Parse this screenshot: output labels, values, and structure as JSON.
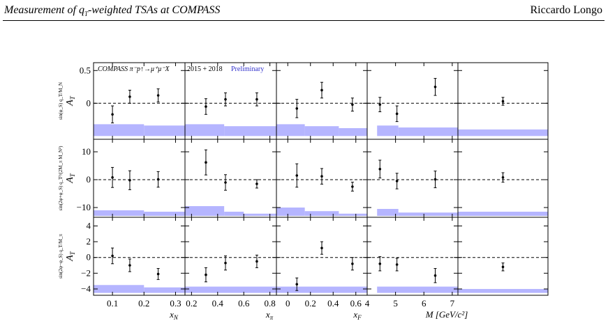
{
  "header": {
    "left_title": "Measurement of q",
    "left_title_sub": "T",
    "left_title_rest": "-weighted TSAs at COMPASS",
    "author": "Riccardo Longo"
  },
  "figure": {
    "annotation_main": "COMPASS π⁻p↑→μ⁺μ⁻X",
    "annotation_years": "2015 + 2018",
    "annotation_prelim": "Preliminary",
    "annotation_prelim_color": "#3333cc",
    "band_color": "#b5b5ff"
  },
  "chart_data": {
    "type": "scatter",
    "layout": "3 rows × 5 columns of panels",
    "rows": [
      {
        "ylabel_main": "A",
        "ylabel_sub": "T",
        "ylabel_sup": "sin(φ_S) q_T/M_N",
        "ylim": [
          -0.55,
          0.62
        ],
        "yticks": [
          0,
          0.5
        ],
        "ytick_labels": [
          "0",
          "0.5"
        ]
      },
      {
        "ylabel_main": "A",
        "ylabel_sub": "T",
        "ylabel_sup": "sin(2φ+φ_S) q_T³/(2M_π M_N²)",
        "ylim": [
          -13.5,
          14.5
        ],
        "yticks": [
          -10,
          0,
          10
        ],
        "ytick_labels": [
          "−10",
          "0",
          "10"
        ]
      },
      {
        "ylabel_main": "A",
        "ylabel_sub": "T",
        "ylabel_sup": "sin(2φ−φ_S) q_T/M_π",
        "ylim": [
          -4.8,
          5.1
        ],
        "yticks": [
          -4,
          -2,
          0,
          2,
          4
        ],
        "ytick_labels": [
          "−4",
          "−2",
          "0",
          "2",
          "4"
        ]
      }
    ],
    "columns": [
      {
        "xlabel": "x",
        "xlabel_sub": "N",
        "xlim": [
          0.04,
          0.33
        ],
        "xticks": [
          0.1,
          0.2,
          0.3
        ],
        "xtick_labels": [
          "0.1",
          "0.2",
          "0.3"
        ]
      },
      {
        "xlabel": "x",
        "xlabel_sub": "π",
        "xlim": [
          0.15,
          0.85
        ],
        "xticks": [
          0.2,
          0.4,
          0.6,
          0.8
        ],
        "xtick_labels": [
          "0.2",
          "0.4",
          "0.6",
          "0.8"
        ]
      },
      {
        "xlabel": "x",
        "xlabel_sub": "F",
        "xlim": [
          -0.1,
          0.7
        ],
        "xticks": [
          0,
          0.2,
          0.4,
          0.6
        ],
        "xtick_labels": [
          "0",
          "0.2",
          "0.4",
          "0.6"
        ]
      },
      {
        "xlabel": "M  [GeV/c²]",
        "xlabel_sub": "",
        "xlim": [
          4.0,
          7.2
        ],
        "xticks": [
          4,
          5,
          6,
          7
        ],
        "xtick_labels": [
          "4",
          "5",
          "6",
          "7"
        ]
      },
      {
        "xlabel": "",
        "xlabel_sub": "",
        "xlim": [
          0,
          1
        ],
        "xticks": [],
        "xtick_labels": []
      }
    ],
    "panels": [
      [
        {
          "points": [
            [
              0.1,
              -0.17,
              0.13
            ],
            [
              0.155,
              0.1,
              0.1
            ],
            [
              0.245,
              0.12,
              0.1
            ]
          ],
          "band_bottom": -0.5,
          "band": [
            [
              0.04,
              0.2,
              -0.32
            ],
            [
              0.2,
              0.33,
              -0.34
            ]
          ]
        },
        {
          "points": [
            [
              0.31,
              -0.05,
              0.12
            ],
            [
              0.46,
              0.06,
              0.1
            ],
            [
              0.7,
              0.06,
              0.1
            ]
          ],
          "band_bottom": -0.5,
          "band": [
            [
              0.15,
              0.45,
              -0.32
            ],
            [
              0.45,
              0.85,
              -0.35
            ]
          ]
        },
        {
          "points": [
            [
              0.08,
              -0.08,
              0.14
            ],
            [
              0.3,
              0.2,
              0.12
            ],
            [
              0.57,
              -0.02,
              0.1
            ]
          ],
          "band_bottom": -0.5,
          "band": [
            [
              -0.1,
              0.15,
              -0.32
            ],
            [
              0.15,
              0.45,
              -0.35
            ],
            [
              0.45,
              0.7,
              -0.38
            ]
          ]
        },
        {
          "points": [
            [
              4.45,
              -0.02,
              0.11
            ],
            [
              5.05,
              -0.16,
              0.12
            ],
            [
              6.4,
              0.25,
              0.13
            ]
          ],
          "band_bottom": -0.5,
          "band": [
            [
              4.35,
              5.1,
              -0.34
            ],
            [
              5.1,
              7.2,
              -0.37
            ]
          ]
        },
        {
          "points": [
            [
              0.5,
              0.03,
              0.06
            ]
          ],
          "band_bottom": -0.5,
          "band": [
            [
              0,
              1,
              -0.4
            ]
          ]
        }
      ],
      [
        {
          "points": [
            [
              0.1,
              0.8,
              3.6
            ],
            [
              0.155,
              -0.2,
              3.4
            ],
            [
              0.245,
              0.1,
              2.8
            ]
          ],
          "band_bottom": -13.0,
          "band": [
            [
              0.04,
              0.2,
              -11.0
            ],
            [
              0.2,
              0.33,
              -11.5
            ]
          ]
        },
        {
          "points": [
            [
              0.31,
              6.2,
              4.5
            ],
            [
              0.46,
              -1.0,
              2.8
            ],
            [
              0.7,
              -1.5,
              1.5
            ]
          ],
          "band_bottom": -13.0,
          "band": [
            [
              0.15,
              0.45,
              -9.5
            ],
            [
              0.45,
              0.6,
              -11.5
            ],
            [
              0.6,
              0.85,
              -12.2
            ]
          ]
        },
        {
          "points": [
            [
              0.08,
              1.5,
              4.2
            ],
            [
              0.3,
              1.2,
              2.8
            ],
            [
              0.57,
              -2.5,
              1.6
            ]
          ],
          "band_bottom": -13.0,
          "band": [
            [
              -0.1,
              0.15,
              -10.0
            ],
            [
              0.15,
              0.45,
              -11.3
            ],
            [
              0.45,
              0.7,
              -12.2
            ]
          ]
        },
        {
          "points": [
            [
              4.45,
              3.8,
              3.2
            ],
            [
              5.05,
              -0.5,
              2.8
            ],
            [
              6.4,
              0.1,
              3.0
            ]
          ],
          "band_bottom": -13.0,
          "band": [
            [
              4.35,
              5.1,
              -10.5
            ],
            [
              5.1,
              7.2,
              -11.8
            ]
          ]
        },
        {
          "points": [
            [
              0.5,
              0.8,
              1.7
            ]
          ],
          "band_bottom": -13.0,
          "band": [
            [
              0,
              1,
              -11.5
            ]
          ]
        }
      ],
      [
        {
          "points": [
            [
              0.1,
              0.2,
              1.0
            ],
            [
              0.155,
              -1.0,
              0.8
            ],
            [
              0.245,
              -2.1,
              0.7
            ]
          ],
          "band_bottom": -4.5,
          "band": [
            [
              0.04,
              0.2,
              -3.5
            ],
            [
              0.2,
              0.33,
              -3.8
            ]
          ]
        },
        {
          "points": [
            [
              0.31,
              -2.2,
              0.9
            ],
            [
              0.46,
              -0.7,
              0.9
            ],
            [
              0.7,
              -0.5,
              0.8
            ]
          ],
          "band_bottom": -4.5,
          "band": [
            [
              0.15,
              0.85,
              -3.7
            ]
          ]
        },
        {
          "points": [
            [
              0.08,
              -3.4,
              0.8
            ],
            [
              0.3,
              1.2,
              0.8
            ],
            [
              0.57,
              -0.8,
              0.8
            ]
          ],
          "band_bottom": -4.5,
          "band": [
            [
              -0.1,
              0.7,
              -3.7
            ]
          ]
        },
        {
          "points": [
            [
              4.45,
              -0.8,
              0.9
            ],
            [
              5.05,
              -0.9,
              0.8
            ],
            [
              6.4,
              -2.3,
              0.9
            ]
          ],
          "band_bottom": -4.5,
          "band": [
            [
              4.35,
              7.2,
              -3.7
            ]
          ]
        },
        {
          "points": [
            [
              0.5,
              -1.2,
              0.5
            ]
          ],
          "band_bottom": -4.5,
          "band": [
            [
              0,
              1,
              -4.0
            ]
          ]
        }
      ]
    ]
  }
}
